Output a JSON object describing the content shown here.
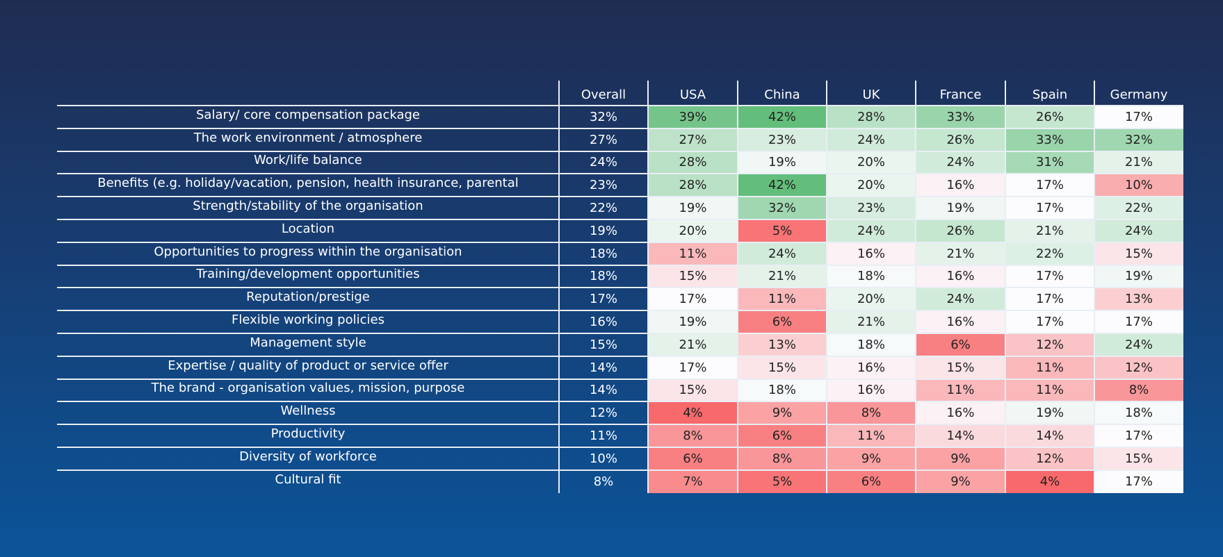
{
  "chart_data": {
    "type": "table",
    "columns": [
      "Overall",
      "USA",
      "China",
      "UK",
      "France",
      "Spain",
      "Germany"
    ],
    "rows": [
      {
        "label": "Salary/ core compensation package",
        "overall": "32%",
        "values": [
          39,
          42,
          28,
          33,
          26,
          17
        ]
      },
      {
        "label": "The work environment / atmosphere",
        "overall": "27%",
        "values": [
          27,
          23,
          24,
          26,
          33,
          32
        ]
      },
      {
        "label": "Work/life balance",
        "overall": "24%",
        "values": [
          28,
          19,
          20,
          24,
          31,
          21
        ]
      },
      {
        "label": "Benefits (e.g. holiday/vacation, pension, health insurance, parental",
        "overall": "23%",
        "values": [
          28,
          42,
          20,
          16,
          17,
          10
        ]
      },
      {
        "label": "Strength/stability of the organisation",
        "overall": "22%",
        "values": [
          19,
          32,
          23,
          19,
          17,
          22
        ]
      },
      {
        "label": "Location",
        "overall": "19%",
        "values": [
          20,
          5,
          24,
          26,
          21,
          24
        ]
      },
      {
        "label": "Opportunities to progress within the organisation",
        "overall": "18%",
        "values": [
          11,
          24,
          16,
          21,
          22,
          15
        ]
      },
      {
        "label": "Training/development opportunities",
        "overall": "18%",
        "values": [
          15,
          21,
          18,
          16,
          17,
          19
        ]
      },
      {
        "label": "Reputation/prestige",
        "overall": "17%",
        "values": [
          17,
          11,
          20,
          24,
          17,
          13
        ]
      },
      {
        "label": "Flexible working policies",
        "overall": "16%",
        "values": [
          19,
          6,
          21,
          16,
          17,
          17
        ]
      },
      {
        "label": "Management style",
        "overall": "15%",
        "values": [
          21,
          13,
          18,
          6,
          12,
          24
        ]
      },
      {
        "label": "Expertise / quality of product or service offer",
        "overall": "14%",
        "values": [
          17,
          15,
          16,
          15,
          11,
          12
        ]
      },
      {
        "label": "The brand - organisation values, mission, purpose",
        "overall": "14%",
        "values": [
          15,
          18,
          16,
          11,
          11,
          8
        ]
      },
      {
        "label": "Wellness",
        "overall": "12%",
        "values": [
          4,
          9,
          8,
          16,
          19,
          18
        ]
      },
      {
        "label": "Productivity",
        "overall": "11%",
        "values": [
          8,
          6,
          11,
          14,
          14,
          17
        ]
      },
      {
        "label": "Diversity of workforce",
        "overall": "10%",
        "values": [
          6,
          8,
          9,
          9,
          12,
          15
        ]
      },
      {
        "label": "Cultural fit",
        "overall": "8%",
        "values": [
          7,
          5,
          6,
          9,
          4,
          17
        ]
      }
    ],
    "value_suffix": "%",
    "color_scale": {
      "low": "#f8696b",
      "mid": "#fcfcff",
      "high": "#63be7b",
      "low_value": 4,
      "mid_value": 17,
      "high_value": 42
    }
  }
}
